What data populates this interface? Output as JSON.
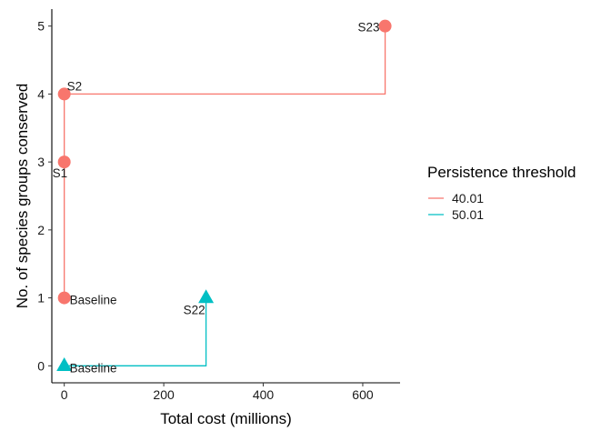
{
  "chart_data": {
    "type": "scatter",
    "xlabel": "Total cost (millions)",
    "ylabel": "No. of species groups conserved",
    "xlim": [
      -25,
      675
    ],
    "ylim": [
      -0.25,
      5.25
    ],
    "xticks": [
      0,
      200,
      400,
      600
    ],
    "yticks": [
      0,
      1,
      2,
      3,
      4,
      5
    ],
    "grid": false,
    "legend": {
      "title": "Persistence threshold",
      "placement": "right",
      "entries": [
        "40.01",
        "50.01"
      ]
    },
    "series": [
      {
        "name": "40.01",
        "color": "#F8766D",
        "marker": "circle",
        "line": "step",
        "points": [
          {
            "x": 0,
            "y": 1,
            "label": "Baseline"
          },
          {
            "x": 0,
            "y": 3,
            "label": "S1"
          },
          {
            "x": 0,
            "y": 4,
            "label": "S2"
          },
          {
            "x": 645,
            "y": 5,
            "label": "S23"
          }
        ]
      },
      {
        "name": "50.01",
        "color": "#00BFC4",
        "marker": "triangle",
        "line": "step",
        "points": [
          {
            "x": 0,
            "y": 0,
            "label": "Baseline"
          },
          {
            "x": 285,
            "y": 1,
            "label": "S22"
          }
        ]
      }
    ]
  }
}
